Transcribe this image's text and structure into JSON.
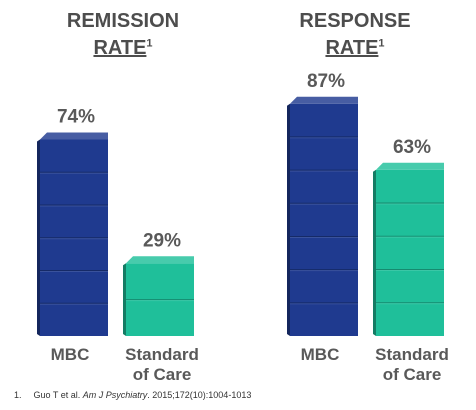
{
  "chart_data": [
    {
      "type": "bar",
      "title_line1": "REMISSION",
      "title_line2": "RATE",
      "title_superscript": "1",
      "categories": [
        "MBC",
        "Standard of Care"
      ],
      "category_lines": [
        [
          "MBC"
        ],
        [
          "Standard",
          "of Care"
        ]
      ],
      "values": [
        74,
        29
      ],
      "value_labels": [
        "74%",
        "29%"
      ],
      "ylim": [
        0,
        100
      ],
      "colors": [
        "#1f3a8f",
        "#1fbf9a"
      ]
    },
    {
      "type": "bar",
      "title_line1": "RESPONSE",
      "title_line2": "RATE",
      "title_superscript": "1",
      "categories": [
        "MBC",
        "Standard of Care"
      ],
      "category_lines": [
        [
          "MBC"
        ],
        [
          "Standard",
          "of Care"
        ]
      ],
      "values": [
        87,
        63
      ],
      "value_labels": [
        "87%",
        "63%"
      ],
      "ylim": [
        0,
        100
      ],
      "colors": [
        "#1f3a8f",
        "#1fbf9a"
      ]
    }
  ],
  "footnote": {
    "number": "1.",
    "authors": "Guo T et al.",
    "journal": "Am J Psychiatry",
    "citation": ". 2015;172(10):1004-1013"
  }
}
